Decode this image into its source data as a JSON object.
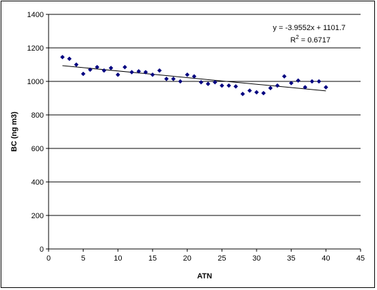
{
  "chart_data": {
    "type": "scatter",
    "title": "",
    "xlabel": "ATN",
    "ylabel": "BC (ng m3)",
    "xlim": [
      0,
      45
    ],
    "ylim": [
      0,
      1400
    ],
    "xticks": [
      0,
      5,
      10,
      15,
      20,
      25,
      30,
      35,
      40,
      45
    ],
    "yticks": [
      0,
      200,
      400,
      600,
      800,
      1000,
      1200,
      1400
    ],
    "grid": "horizontal major lines",
    "legend": "none",
    "marker_color": "#000080",
    "series": [
      {
        "x": [
          2,
          3,
          4,
          5,
          6,
          7,
          8,
          9,
          10,
          11,
          12,
          13,
          14,
          15,
          16,
          17,
          18,
          19,
          20,
          21,
          22,
          23,
          24,
          25,
          26,
          27,
          28,
          29,
          30,
          31,
          32,
          33,
          34,
          35,
          36,
          37,
          38,
          39,
          40
        ],
        "y": [
          1145,
          1135,
          1100,
          1045,
          1070,
          1085,
          1065,
          1080,
          1040,
          1085,
          1055,
          1060,
          1055,
          1040,
          1065,
          1015,
          1015,
          1000,
          1040,
          1030,
          995,
          985,
          995,
          975,
          975,
          970,
          925,
          945,
          935,
          930,
          960,
          975,
          1030,
          990,
          1005,
          965,
          1000,
          1000,
          965
        ]
      }
    ],
    "trendline": {
      "slope": -3.9552,
      "intercept": 1101.7,
      "x_range": [
        2,
        40
      ],
      "equation": "y = -3.9552x + 1101.7",
      "r2_prefix": "R",
      "r2_sup": "2",
      "r2_suffix": " = 0.6717"
    }
  }
}
